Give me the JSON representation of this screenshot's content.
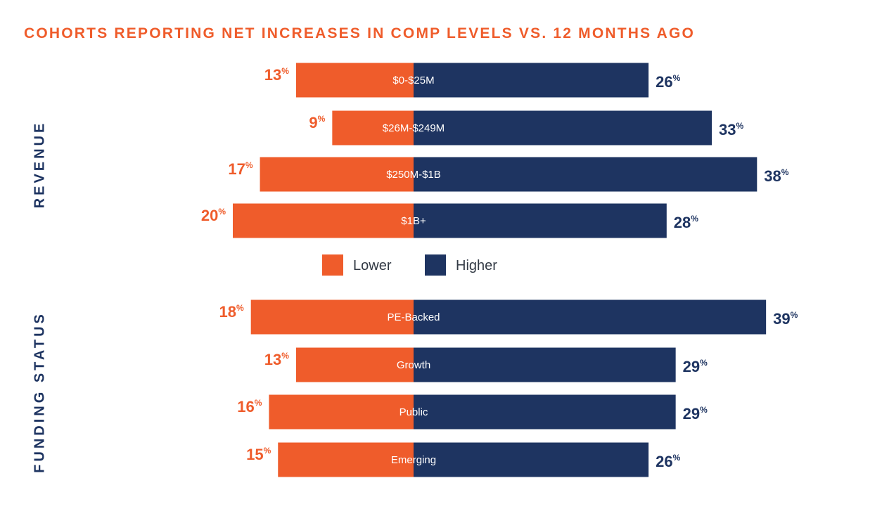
{
  "colors": {
    "lower": "#ef5c2b",
    "higher": "#1e3461",
    "title": "#ef5c2b",
    "group_label": "#1e3461",
    "background": "#ffffff"
  },
  "chart_data": {
    "type": "bar",
    "orientation": "horizontal-diverging",
    "title": "COHORTS REPORTING NET INCREASES IN COMP LEVELS VS. 12 MONTHS AGO",
    "value_suffix": "%",
    "legend": {
      "placement": "center",
      "entries": [
        "Lower",
        "Higher"
      ]
    },
    "groups": [
      {
        "label": "REVENUE",
        "categories": [
          "$0-$25M",
          "$26M-$249M",
          "$250M-$1B",
          "$1B+"
        ],
        "series": [
          {
            "name": "Lower",
            "values": [
              13,
              9,
              17,
              20
            ]
          },
          {
            "name": "Higher",
            "values": [
              26,
              33,
              38,
              28
            ]
          }
        ]
      },
      {
        "label": "FUNDING STATUS",
        "categories": [
          "PE-Backed",
          "Growth",
          "Public",
          "Emerging"
        ],
        "series": [
          {
            "name": "Lower",
            "values": [
              18,
              13,
              16,
              15
            ]
          },
          {
            "name": "Higher",
            "values": [
              39,
              29,
              29,
              26
            ]
          }
        ]
      }
    ]
  }
}
